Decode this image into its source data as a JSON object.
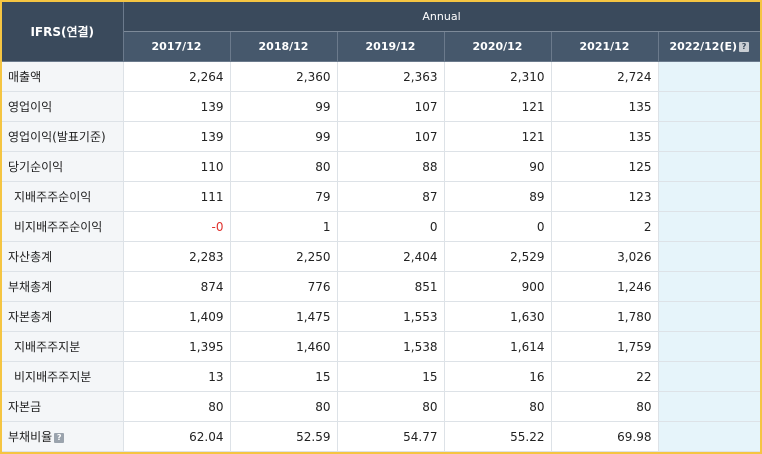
{
  "header": {
    "main_label": "IFRS(연결)",
    "annual_label": "Annual",
    "years": [
      "2017/12",
      "2018/12",
      "2019/12",
      "2020/12",
      "2021/12",
      "2022/12(E)"
    ],
    "estimate_help_icon": "question-mark-icon"
  },
  "rows": [
    {
      "label": "매출액",
      "sub": false,
      "values": [
        "2,264",
        "2,360",
        "2,363",
        "2,310",
        "2,724",
        ""
      ]
    },
    {
      "label": "영업이익",
      "sub": false,
      "values": [
        "139",
        "99",
        "107",
        "121",
        "135",
        ""
      ]
    },
    {
      "label": "영업이익(발표기준)",
      "sub": false,
      "values": [
        "139",
        "99",
        "107",
        "121",
        "135",
        ""
      ]
    },
    {
      "label": "당기순이익",
      "sub": false,
      "values": [
        "110",
        "80",
        "88",
        "90",
        "125",
        ""
      ]
    },
    {
      "label": "지배주주순이익",
      "sub": true,
      "values": [
        "111",
        "79",
        "87",
        "89",
        "123",
        ""
      ]
    },
    {
      "label": "비지배주주순이익",
      "sub": true,
      "values": [
        "-0",
        "1",
        "0",
        "0",
        "2",
        ""
      ]
    },
    {
      "label": "자산총계",
      "sub": false,
      "values": [
        "2,283",
        "2,250",
        "2,404",
        "2,529",
        "3,026",
        ""
      ]
    },
    {
      "label": "부채총계",
      "sub": false,
      "values": [
        "874",
        "776",
        "851",
        "900",
        "1,246",
        ""
      ]
    },
    {
      "label": "자본총계",
      "sub": false,
      "values": [
        "1,409",
        "1,475",
        "1,553",
        "1,630",
        "1,780",
        ""
      ]
    },
    {
      "label": "지배주주지분",
      "sub": true,
      "values": [
        "1,395",
        "1,460",
        "1,538",
        "1,614",
        "1,759",
        ""
      ]
    },
    {
      "label": "비지배주주지분",
      "sub": true,
      "values": [
        "13",
        "15",
        "15",
        "16",
        "22",
        ""
      ]
    },
    {
      "label": "자본금",
      "sub": false,
      "values": [
        "80",
        "80",
        "80",
        "80",
        "80",
        ""
      ]
    },
    {
      "label": "부채비율",
      "sub": false,
      "help": true,
      "values": [
        "62.04",
        "52.59",
        "54.77",
        "55.22",
        "69.98",
        ""
      ]
    }
  ],
  "colors": {
    "header_bg": "#3a4a5c",
    "estimate_bg": "#e6f4fa",
    "negative": "#e0322e",
    "frame": "#f5c542"
  }
}
